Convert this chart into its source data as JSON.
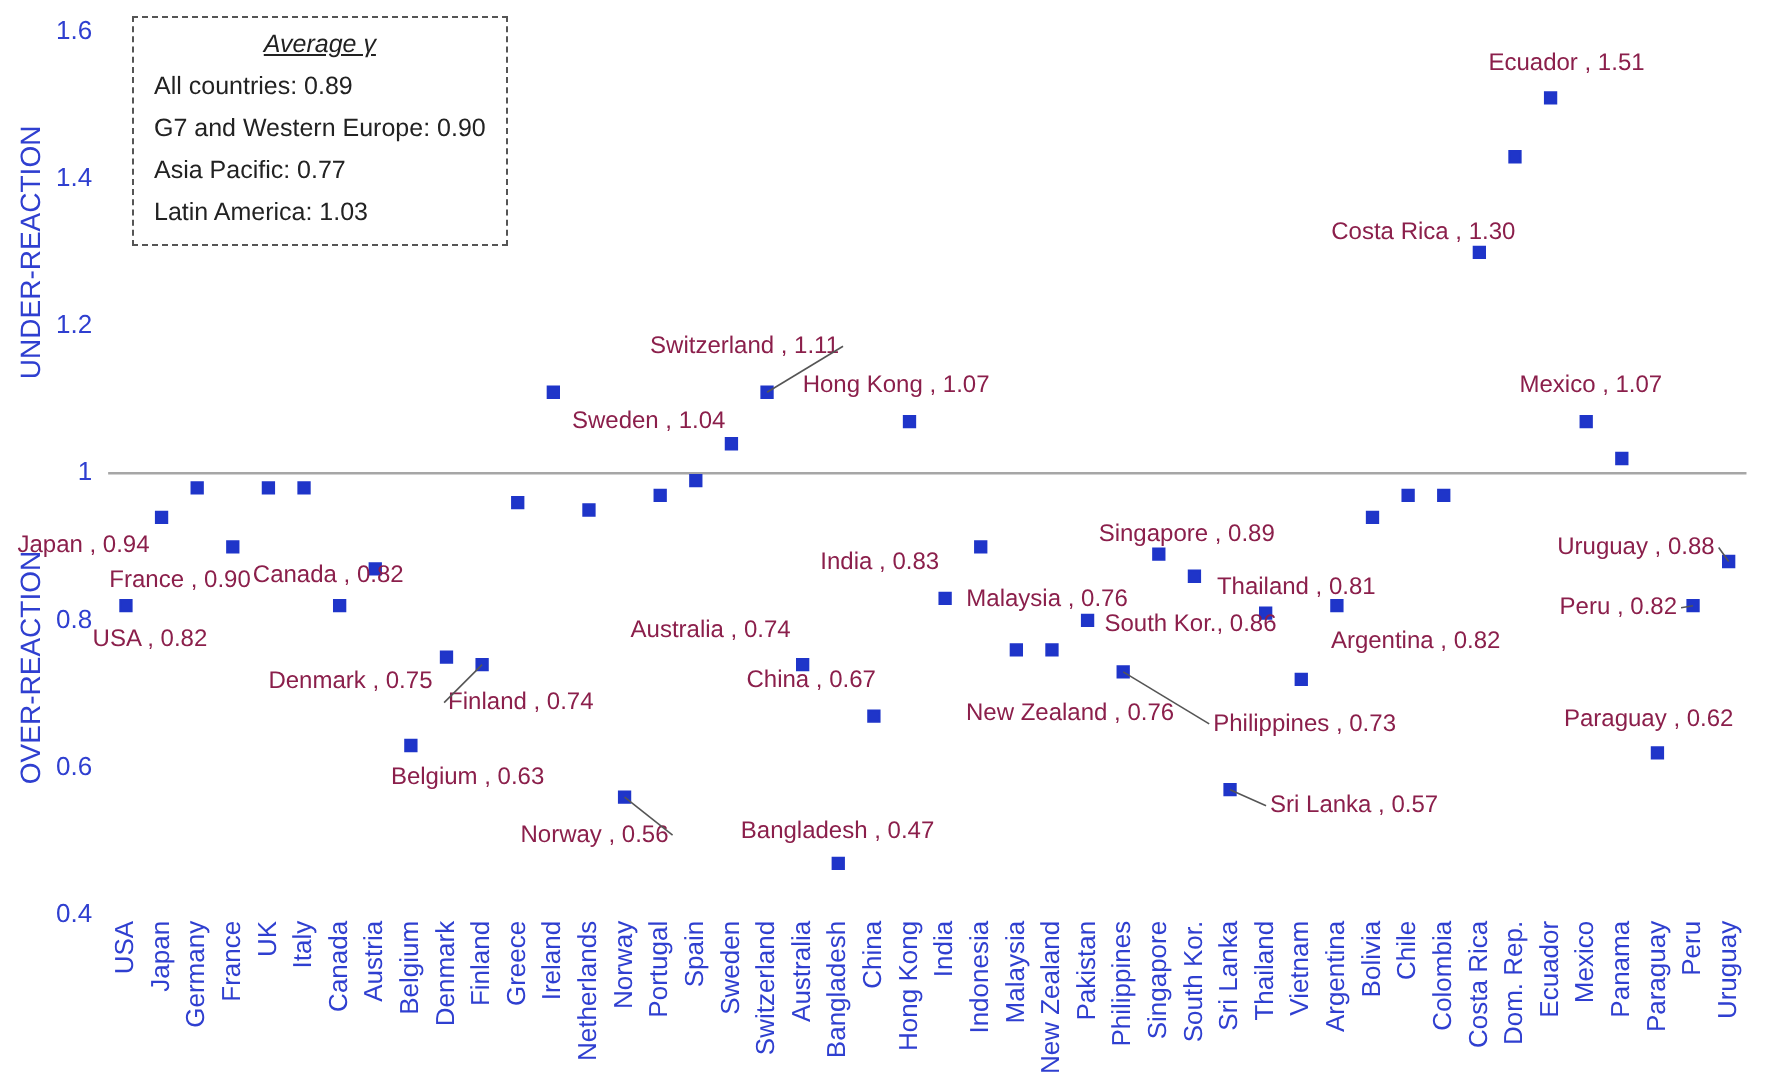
{
  "chart_data": {
    "type": "scatter",
    "marker": "square",
    "grid": false,
    "legend": false,
    "categories": [
      "USA",
      "Japan",
      "Germany",
      "France",
      "UK",
      "Italy",
      "Canada",
      "Austria",
      "Belgium",
      "Denmark",
      "Finland",
      "Greece",
      "Ireland",
      "Netherlands",
      "Norway",
      "Portugal",
      "Spain",
      "Sweden",
      "Switzerland",
      "Australia",
      "Bangladesh",
      "China",
      "Hong Kong",
      "India",
      "Indonesia",
      "Malaysia",
      "New Zealand",
      "Pakistan",
      "Philippines",
      "Singapore",
      "South Kor.",
      "Sri Lanka",
      "Thailand",
      "Vietnam",
      "Argentina",
      "Bolivia",
      "Chile",
      "Colombia",
      "Costa Rica",
      "Dom. Rep.",
      "Ecuador",
      "Mexico",
      "Panama",
      "Paraguay",
      "Peru",
      "Uruguay"
    ],
    "series": [
      {
        "color": "#1f35c9",
        "values": [
          0.82,
          0.94,
          0.98,
          0.9,
          0.98,
          0.98,
          0.82,
          0.87,
          0.63,
          0.75,
          0.74,
          0.96,
          1.11,
          0.95,
          0.56,
          0.97,
          0.99,
          1.04,
          1.11,
          0.74,
          0.47,
          0.67,
          1.07,
          0.83,
          0.9,
          0.76,
          0.76,
          0.8,
          0.73,
          0.89,
          0.86,
          0.57,
          0.81,
          0.72,
          0.82,
          0.94,
          0.97,
          0.97,
          1.3,
          1.43,
          1.51,
          1.07,
          1.02,
          0.62,
          0.82,
          0.88
        ]
      }
    ],
    "ylim": [
      0.4,
      1.6
    ],
    "yticks": [
      0.4,
      0.6,
      0.8,
      1,
      1.2,
      1.4,
      1.6
    ],
    "ref_lines": [
      {
        "axis": "y",
        "value": 1,
        "color": "#a6a6a6"
      }
    ],
    "annotations": [
      "Average γ",
      "All countries: 0.89",
      "G7 and Western Europe: 0.90",
      "Asia Pacific: 0.77",
      "Latin America: 1.03",
      "UNDER-REACTION",
      "OVER-REACTION",
      {
        "text": "Japan , 0.94",
        "x": "Japan",
        "y": 0.94
      },
      {
        "text": "USA , 0.82",
        "x": "USA",
        "y": 0.82
      },
      {
        "text": "France , 0.90",
        "x": "France",
        "y": 0.9
      },
      {
        "text": "Canada , 0.82",
        "x": "Canada",
        "y": 0.82
      },
      {
        "text": "Denmark , 0.75",
        "x": "Denmark",
        "y": 0.75
      },
      {
        "text": "Finland , 0.74",
        "x": "Finland",
        "y": 0.74
      },
      {
        "text": "Belgium , 0.63",
        "x": "Belgium",
        "y": 0.63
      },
      {
        "text": "Norway , 0.56",
        "x": "Norway",
        "y": 0.56
      },
      {
        "text": "Sweden , 1.04",
        "x": "Sweden",
        "y": 1.04
      },
      {
        "text": "Switzerland , 1.11",
        "x": "Switzerland",
        "y": 1.11
      },
      {
        "text": "Hong Kong , 1.07",
        "x": "Hong Kong",
        "y": 1.07
      },
      {
        "text": "Australia , 0.74",
        "x": "Australia",
        "y": 0.74
      },
      {
        "text": "Bangladesh , 0.47",
        "x": "Bangladesh",
        "y": 0.47
      },
      {
        "text": "China , 0.67",
        "x": "China",
        "y": 0.67
      },
      {
        "text": "India , 0.83",
        "x": "India",
        "y": 0.83
      },
      {
        "text": "Malaysia , 0.76",
        "x": "Malaysia",
        "y": 0.76
      },
      {
        "text": "New Zealand , 0.76",
        "x": "New Zealand",
        "y": 0.76
      },
      {
        "text": "Singapore , 0.89",
        "x": "Singapore",
        "y": 0.89
      },
      {
        "text": "South Kor., 0.86",
        "x": "South Kor.",
        "y": 0.86
      },
      {
        "text": "Philippines , 0.73",
        "x": "Philippines",
        "y": 0.73
      },
      {
        "text": "Sri Lanka , 0.57",
        "x": "Sri Lanka",
        "y": 0.57
      },
      {
        "text": "Thailand , 0.81",
        "x": "Thailand",
        "y": 0.81
      },
      {
        "text": "Argentina , 0.82",
        "x": "Argentina",
        "y": 0.82
      },
      {
        "text": "Peru , 0.82",
        "x": "Peru",
        "y": 0.82
      },
      {
        "text": "Uruguay , 0.88",
        "x": "Uruguay",
        "y": 0.88
      },
      {
        "text": "Paraguay , 0.62",
        "x": "Paraguay",
        "y": 0.62
      },
      {
        "text": "Ecuador , 1.51",
        "x": "Ecuador",
        "y": 1.51
      },
      {
        "text": "Costa Rica , 1.30",
        "x": "Costa Rica",
        "y": 1.3
      },
      {
        "text": "Mexico , 1.07",
        "x": "Mexico",
        "y": 1.07
      }
    ]
  }
}
